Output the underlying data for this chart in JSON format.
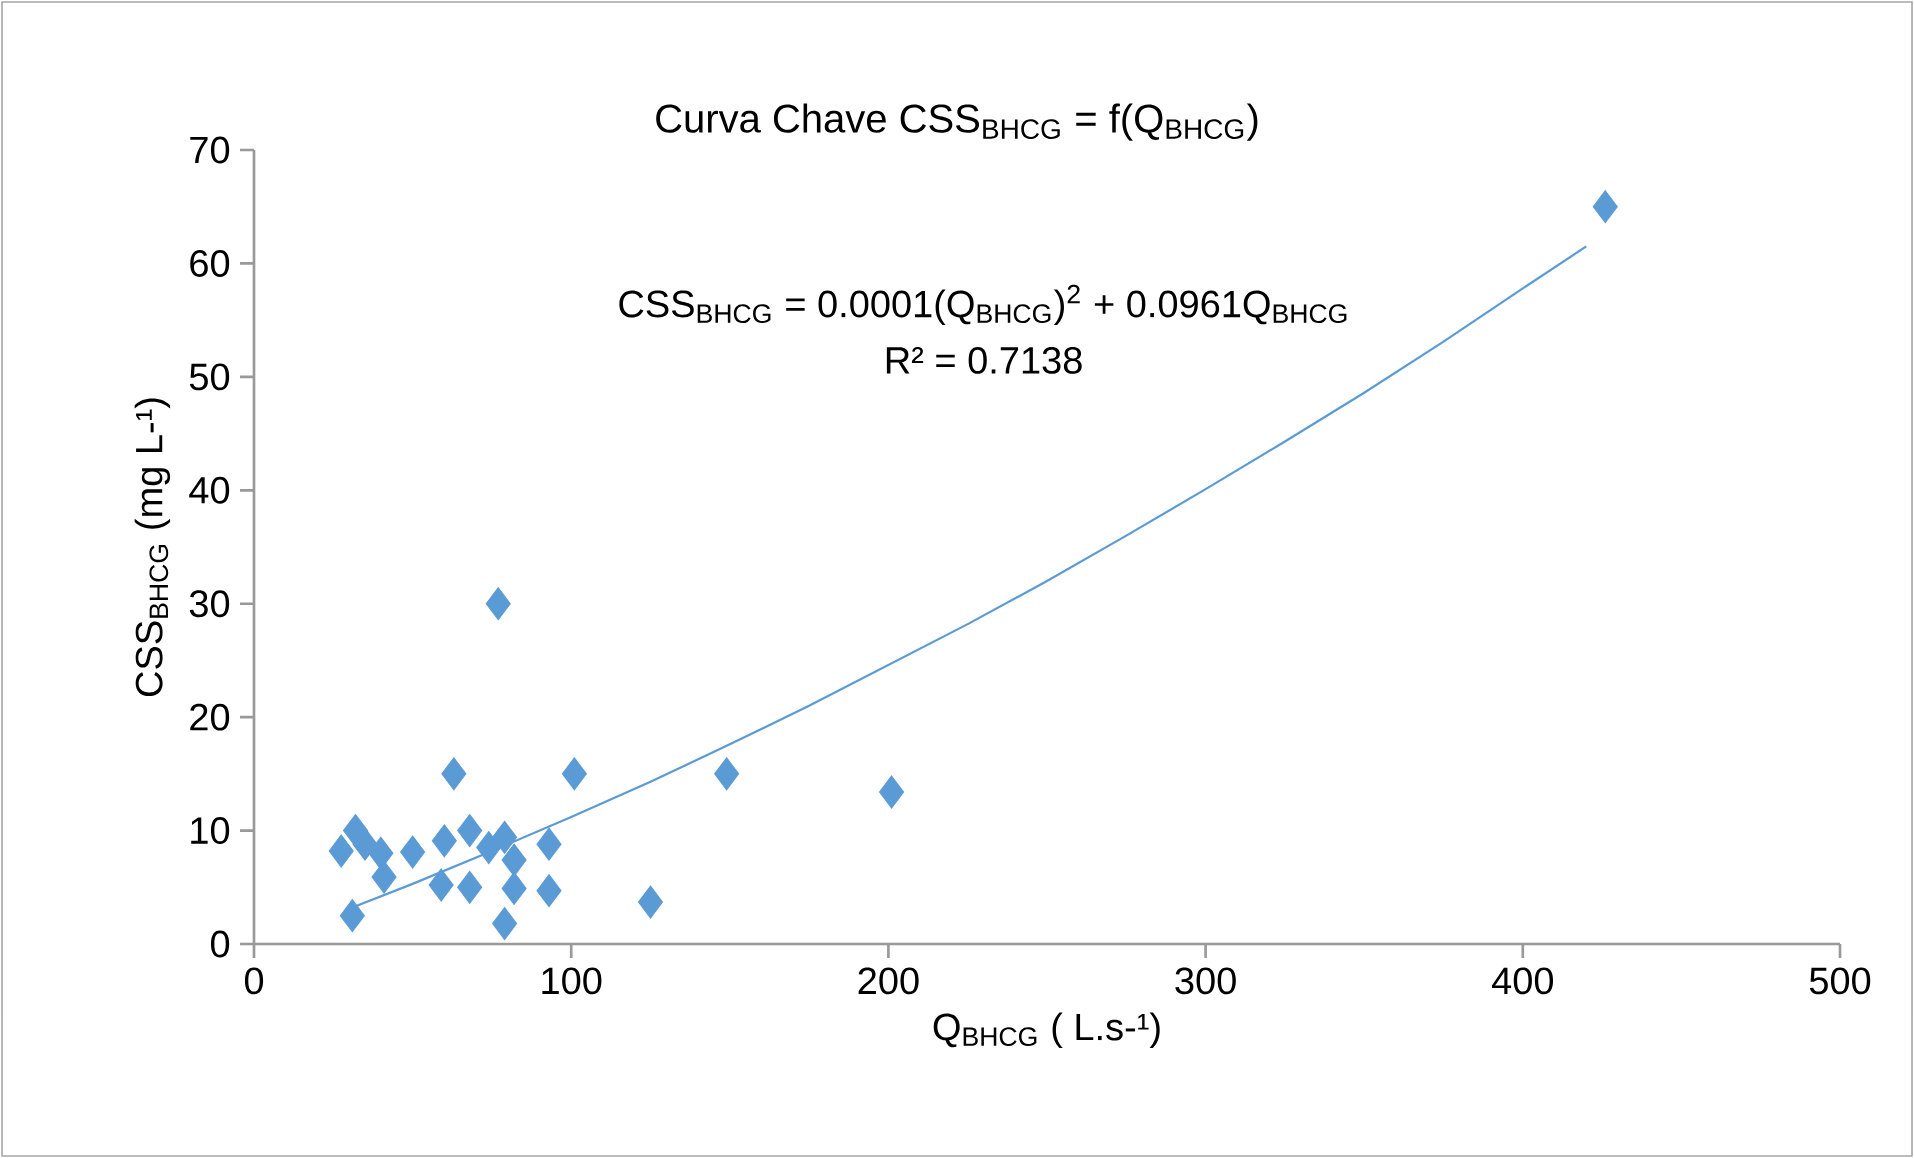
{
  "chart_data": {
    "type": "scatter",
    "title": "Curva Chave CSS$_{BHCG}$ = f(Q$_{BHCG}$)",
    "xlabel": "Q$_{BHCG}$ ( L.s-¹)",
    "ylabel": "CSS$_{BHCG}$ (mg L-¹)",
    "annotations": [
      "CSS$_{BHCG}$ = 0.0001(Q$_{BHCG}$)$^{2}$ + 0.0961Q$_{BHCG}$",
      "R² = 0.7138"
    ],
    "xlim": [
      0,
      500
    ],
    "ylim": [
      0,
      70
    ],
    "xticks": [
      0,
      100,
      200,
      300,
      400,
      500
    ],
    "yticks": [
      0,
      10,
      20,
      30,
      40,
      50,
      60,
      70
    ],
    "grid": false,
    "marker": "diamond",
    "series": [
      {
        "color": "#5b9bd5",
        "x": [
          77,
          63,
          101,
          149,
          27.5,
          32,
          35,
          40,
          41,
          50,
          60,
          59,
          68,
          68,
          74,
          79,
          82,
          82,
          79,
          93,
          93,
          31,
          125,
          201,
          426
        ],
        "values": [
          30,
          15,
          15,
          15,
          8.2,
          10,
          8.8,
          8,
          5.9,
          8.1,
          9.1,
          5.2,
          10,
          5,
          8.5,
          9.4,
          7.4,
          4.9,
          1.8,
          8.8,
          4.7,
          2.5,
          3.7,
          13.4,
          65
        ]
      },
      {
        "type": "line",
        "color": "#5b9bd5",
        "marker": "none",
        "x": [
          30,
          50,
          75,
          100,
          125,
          150,
          175,
          200,
          225,
          250,
          275,
          300,
          325,
          350,
          375,
          400,
          420
        ],
        "values": [
          3.1,
          5.3,
          8.2,
          11.2,
          14.3,
          17.6,
          21,
          24.6,
          28.2,
          32,
          36,
          40.1,
          44.3,
          48.6,
          53.1,
          57.8,
          61.5
        ]
      }
    ]
  }
}
